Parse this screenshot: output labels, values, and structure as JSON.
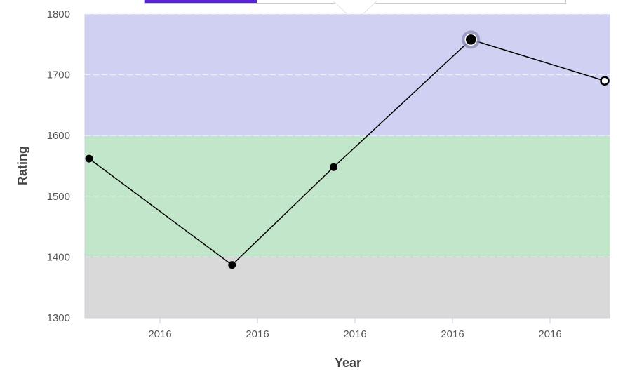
{
  "chart_data": {
    "type": "line",
    "xlabel": "Year",
    "ylabel": "Rating",
    "ylim": [
      1300,
      1800
    ],
    "yticks": [
      1300,
      1400,
      1500,
      1600,
      1700,
      1800
    ],
    "xtick_labels": [
      "2016",
      "2016",
      "2016",
      "2016",
      "2016"
    ],
    "grid": true,
    "bands": [
      {
        "from": 1300,
        "to": 1400,
        "color": "#d9d9d9"
      },
      {
        "from": 1400,
        "to": 1600,
        "color": "#c1e6ca"
      },
      {
        "from": 1600,
        "to": 1800,
        "color": "#d0d0f3"
      }
    ],
    "series": [
      {
        "values": [
          1562,
          1387,
          1548,
          1758,
          1690
        ],
        "color": "#000000",
        "highlighted_index": 3,
        "hollow_index": 4
      }
    ]
  },
  "tooltip": {
    "accent_color": "#5a24d6"
  }
}
